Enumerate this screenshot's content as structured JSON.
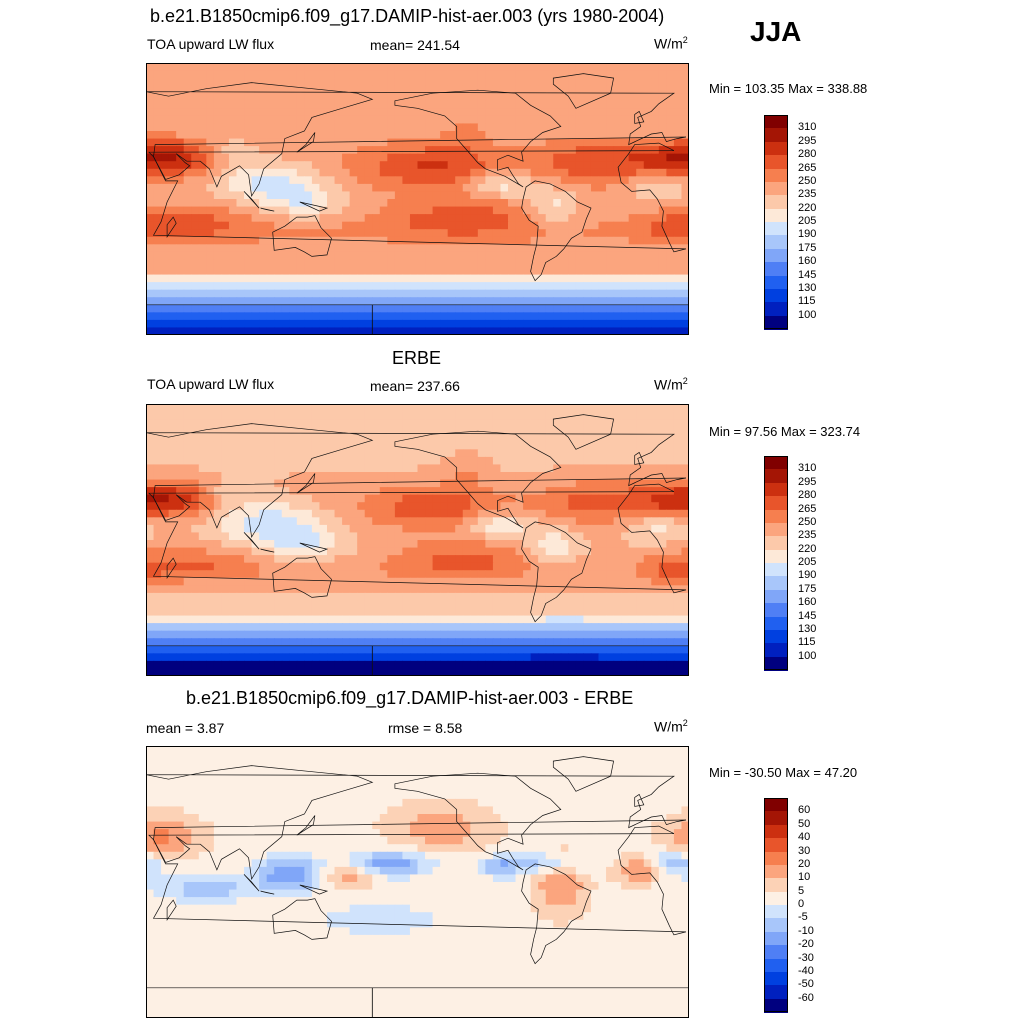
{
  "season": "JJA",
  "units_base": "W/m",
  "units_exp": "2",
  "palettes": {
    "abs": [
      "#00007f",
      "#0020bf",
      "#0040e0",
      "#2060f0",
      "#4f7ff5",
      "#80a6f8",
      "#a8c6fa",
      "#d0e3fc",
      "#fde9d8",
      "#fcc9aa",
      "#fba57e",
      "#f67f4f",
      "#e8552b",
      "#cc3010",
      "#a41505",
      "#800000"
    ],
    "diff": [
      "#00007f",
      "#0020bf",
      "#0040e0",
      "#2060f0",
      "#4f7ff5",
      "#80a6f8",
      "#a8c6fa",
      "#d0e3fc",
      "#fdf0e4",
      "#fcd2b6",
      "#fba57e",
      "#f67f4f",
      "#e8552b",
      "#cc3010",
      "#a41505",
      "#800000"
    ]
  },
  "panels": [
    {
      "title": "b.e21.B1850cmip6.f09_g17.DAMIP-hist-aer.003 (yrs 1980-2004)",
      "left_label": "TOA upward LW flux",
      "mid_label": "mean= 241.54",
      "minmax": "Min = 103.35 Max = 338.88",
      "colorbar": [
        "310",
        "295",
        "280",
        "265",
        "250",
        "235",
        "220",
        "205",
        "190",
        "175",
        "160",
        "145",
        "130",
        "115",
        "100"
      ]
    },
    {
      "title": "ERBE",
      "left_label": "TOA upward LW flux",
      "mid_label": "mean= 237.66",
      "minmax": "Min =  97.56 Max = 323.74",
      "colorbar": [
        "310",
        "295",
        "280",
        "265",
        "250",
        "235",
        "220",
        "205",
        "190",
        "175",
        "160",
        "145",
        "130",
        "115",
        "100"
      ]
    },
    {
      "title": "b.e21.B1850cmip6.f09_g17.DAMIP-hist-aer.003 - ERBE",
      "left_label": "mean =   3.87",
      "mid_label": "rmse =   8.58",
      "minmax": "Min = -30.50 Max =  47.20",
      "colorbar": [
        "60",
        "50",
        "40",
        "30",
        "20",
        "10",
        "5",
        "0",
        "-5",
        "-10",
        "-20",
        "-30",
        "-40",
        "-50",
        "-60"
      ]
    }
  ],
  "chart_data": [
    {
      "type": "heatmap",
      "title": "b.e21.B1850cmip6.f09_g17.DAMIP-hist-aer.003 (yrs 1980-2004)",
      "variable": "TOA upward LW flux",
      "units": "W/m2",
      "season": "JJA",
      "mean": 241.54,
      "min": 103.35,
      "max": 338.88,
      "contour_levels": [
        100,
        115,
        130,
        145,
        160,
        175,
        190,
        205,
        220,
        235,
        250,
        265,
        280,
        295,
        310
      ]
    },
    {
      "type": "heatmap",
      "title": "ERBE",
      "variable": "TOA upward LW flux",
      "units": "W/m2",
      "season": "JJA",
      "mean": 237.66,
      "min": 97.56,
      "max": 323.74,
      "contour_levels": [
        100,
        115,
        130,
        145,
        160,
        175,
        190,
        205,
        220,
        235,
        250,
        265,
        280,
        295,
        310
      ]
    },
    {
      "type": "heatmap",
      "title": "b.e21.B1850cmip6.f09_g17.DAMIP-hist-aer.003 - ERBE",
      "units": "W/m2",
      "season": "JJA",
      "mean": 3.87,
      "rmse": 8.58,
      "min": -30.5,
      "max": 47.2,
      "contour_levels": [
        -60,
        -50,
        -40,
        -30,
        -20,
        -10,
        -5,
        0,
        5,
        10,
        20,
        30,
        40,
        50,
        60
      ]
    }
  ]
}
